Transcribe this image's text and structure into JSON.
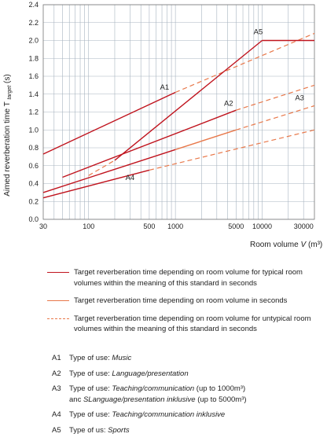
{
  "chart_data": {
    "type": "line",
    "xscale": "log",
    "xlabel": "Room volume",
    "xlabel_symbol": "V",
    "xlabel_unit": "(m³)",
    "ylabel": "Aimed reverberation time T",
    "ylabel_sub": "target",
    "ylabel_unit": "(s)",
    "xlim": [
      30,
      40000
    ],
    "ylim": [
      0,
      2.4
    ],
    "yticks": [
      "0.0",
      "0.2",
      "0.4",
      "0.6",
      "0.8",
      "1.0",
      "1.2",
      "1.4",
      "1.6",
      "1.8",
      "2.0",
      "2.2",
      "2.4"
    ],
    "xticks": [
      {
        "value": 30,
        "label": "30"
      },
      {
        "value": 100,
        "label": "100"
      },
      {
        "value": 500,
        "label": "500"
      },
      {
        "value": 1000,
        "label": "1000"
      },
      {
        "value": 5000,
        "label": "5000"
      },
      {
        "value": 10000,
        "label": "10000"
      },
      {
        "value": 30000,
        "label": "30000"
      }
    ],
    "gridlines_x": [
      40,
      50,
      60,
      70,
      80,
      90,
      100,
      200,
      300,
      400,
      500,
      600,
      700,
      800,
      900,
      1000,
      2000,
      3000,
      4000,
      5000,
      6000,
      7000,
      8000,
      9000,
      10000,
      20000,
      30000
    ],
    "grid": true,
    "colors": {
      "dark": "#c0141e",
      "light": "#e8784a",
      "grid": "#a8b4c0"
    },
    "series": [
      {
        "label": "A1",
        "style": "solid-dark",
        "x": [
          30,
          1000
        ],
        "y": [
          0.73,
          1.42
        ]
      },
      {
        "label": "A1",
        "style": "dashed-light",
        "x": [
          1000,
          40000
        ],
        "y": [
          1.42,
          2.08
        ]
      },
      {
        "label": "A5",
        "style": "solid-dark",
        "x": [
          200,
          10000
        ],
        "y": [
          0.66,
          2.0
        ]
      },
      {
        "label": "A5",
        "style": "solid-dark",
        "x": [
          10000,
          40000
        ],
        "y": [
          2.0,
          2.0
        ]
      },
      {
        "label": "A2",
        "style": "solid-dark",
        "x": [
          50,
          5000
        ],
        "y": [
          0.47,
          1.22
        ]
      },
      {
        "label": "A2",
        "style": "dashed-light",
        "x": [
          5000,
          40000
        ],
        "y": [
          1.22,
          1.5
        ]
      },
      {
        "label": "A3",
        "style": "solid-dark",
        "x": [
          30,
          1000
        ],
        "y": [
          0.3,
          0.78
        ]
      },
      {
        "label": "A3",
        "style": "solid-light",
        "x": [
          1000,
          5000
        ],
        "y": [
          0.78,
          1.0
        ]
      },
      {
        "label": "A3",
        "style": "dashed-light",
        "x": [
          5000,
          40000
        ],
        "y": [
          1.0,
          1.27
        ]
      },
      {
        "label": "A4",
        "style": "solid-dark",
        "x": [
          30,
          500
        ],
        "y": [
          0.24,
          0.55
        ]
      },
      {
        "label": "A4",
        "style": "dashed-light",
        "x": [
          500,
          40000
        ],
        "y": [
          0.55,
          1.0
        ]
      },
      {
        "label": "",
        "style": "dashed-light",
        "x": [
          100,
          200
        ],
        "y": [
          0.49,
          0.66
        ]
      }
    ],
    "annotations": [
      {
        "text": "A1",
        "x": 750,
        "y": 1.45
      },
      {
        "text": "A2",
        "x": 4100,
        "y": 1.27
      },
      {
        "text": "A3",
        "x": 27000,
        "y": 1.33
      },
      {
        "text": "A4",
        "x": 300,
        "y": 0.44
      },
      {
        "text": "A5",
        "x": 9000,
        "y": 2.07
      }
    ]
  },
  "legend": [
    {
      "style": "solid-dark",
      "text": "Target reverberation time depending on room volume for typical room volumes within the meaning of this standard in seconds"
    },
    {
      "style": "solid-light",
      "text": "Target reverberation time depending on room volume in seconds"
    },
    {
      "style": "dashed-light",
      "text": "Target reverberation time depending on room volume for untypical room volumes within the meaning of this standard in seconds"
    }
  ],
  "uses": [
    {
      "code": "A1",
      "prefix": "Type of use: ",
      "italic": "Music",
      "rest": ""
    },
    {
      "code": "A2",
      "prefix": "Type of use: ",
      "italic": "Language/presentation",
      "rest": ""
    },
    {
      "code": "A3",
      "prefix": "Type of use: ",
      "italic": "Teaching/communication",
      "rest": " (up to 1000m³)",
      "line2_prefix": "anc ",
      "line2_italic": "SLanguage/presentation inklusive",
      "line2_rest": " (up to  5000m³)"
    },
    {
      "code": "A4",
      "prefix": "Type of use: ",
      "italic": "Teaching/communication inklusive",
      "rest": ""
    },
    {
      "code": "A5",
      "prefix": "Type of us: ",
      "italic": "Sports",
      "rest": ""
    }
  ]
}
